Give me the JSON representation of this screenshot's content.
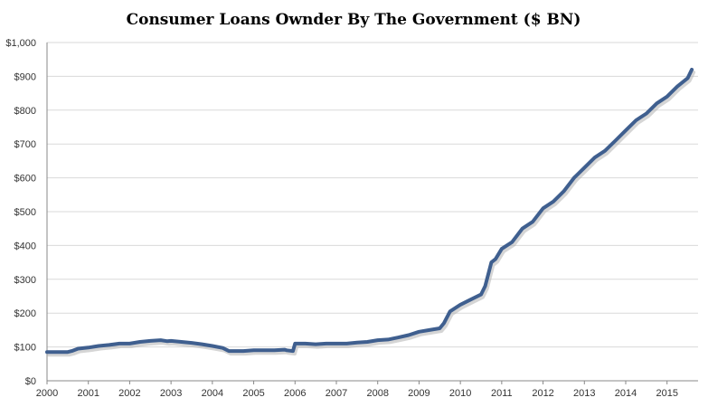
{
  "chart_data": {
    "type": "line",
    "title": "Consumer Loans Ownder By The Government ($ BN)",
    "xlabel": "",
    "ylabel": "",
    "xlim": [
      2000.0,
      2015.75
    ],
    "ylim": [
      0,
      1000
    ],
    "grid": true,
    "legend": "none",
    "y_ticks": [
      {
        "value": 0,
        "label": "$0"
      },
      {
        "value": 100,
        "label": "$100"
      },
      {
        "value": 200,
        "label": "$200"
      },
      {
        "value": 300,
        "label": "$300"
      },
      {
        "value": 400,
        "label": "$400"
      },
      {
        "value": 500,
        "label": "$500"
      },
      {
        "value": 600,
        "label": "$600"
      },
      {
        "value": 700,
        "label": "$700"
      },
      {
        "value": 800,
        "label": "$800"
      },
      {
        "value": 900,
        "label": "$900"
      },
      {
        "value": 1000,
        "label": "$1,000"
      }
    ],
    "x_ticks": [
      {
        "value": 2000,
        "label": "2000"
      },
      {
        "value": 2001,
        "label": "2001"
      },
      {
        "value": 2002,
        "label": "2002"
      },
      {
        "value": 2003,
        "label": "2003"
      },
      {
        "value": 2004,
        "label": "2004"
      },
      {
        "value": 2005,
        "label": "2005"
      },
      {
        "value": 2006,
        "label": "2006"
      },
      {
        "value": 2007,
        "label": "2007"
      },
      {
        "value": 2008,
        "label": "2008"
      },
      {
        "value": 2009,
        "label": "2009"
      },
      {
        "value": 2010,
        "label": "2010"
      },
      {
        "value": 2011,
        "label": "2011"
      },
      {
        "value": 2012,
        "label": "2012"
      },
      {
        "value": 2013,
        "label": "2013"
      },
      {
        "value": 2014,
        "label": "2014"
      },
      {
        "value": 2015,
        "label": "2015"
      }
    ],
    "series": [
      {
        "color": "#3f5f8f",
        "x": [
          2000.0,
          2000.25,
          2000.5,
          2000.6,
          2000.75,
          2001.0,
          2001.25,
          2001.5,
          2001.75,
          2002.0,
          2002.25,
          2002.5,
          2002.75,
          2002.9,
          2003.0,
          2003.25,
          2003.5,
          2003.75,
          2004.0,
          2004.25,
          2004.4,
          2004.5,
          2004.75,
          2005.0,
          2005.25,
          2005.5,
          2005.75,
          2005.8,
          2005.95,
          2006.0,
          2006.25,
          2006.5,
          2006.75,
          2007.0,
          2007.25,
          2007.5,
          2007.75,
          2008.0,
          2008.25,
          2008.5,
          2008.75,
          2009.0,
          2009.25,
          2009.5,
          2009.6,
          2009.75,
          2010.0,
          2010.25,
          2010.5,
          2010.6,
          2010.75,
          2010.85,
          2011.0,
          2011.25,
          2011.5,
          2011.75,
          2012.0,
          2012.25,
          2012.5,
          2012.75,
          2013.0,
          2013.25,
          2013.5,
          2013.75,
          2014.0,
          2014.25,
          2014.5,
          2014.75,
          2015.0,
          2015.25,
          2015.5,
          2015.6
        ],
        "y": [
          85,
          85,
          85,
          88,
          95,
          98,
          103,
          106,
          110,
          110,
          115,
          118,
          120,
          117,
          118,
          115,
          112,
          108,
          103,
          97,
          88,
          88,
          88,
          90,
          90,
          90,
          92,
          90,
          88,
          110,
          110,
          108,
          110,
          110,
          110,
          113,
          115,
          120,
          122,
          128,
          135,
          145,
          150,
          155,
          170,
          205,
          225,
          240,
          255,
          280,
          350,
          360,
          390,
          410,
          450,
          470,
          510,
          530,
          560,
          600,
          630,
          660,
          680,
          710,
          740,
          770,
          790,
          820,
          840,
          870,
          895,
          920
        ]
      }
    ]
  }
}
